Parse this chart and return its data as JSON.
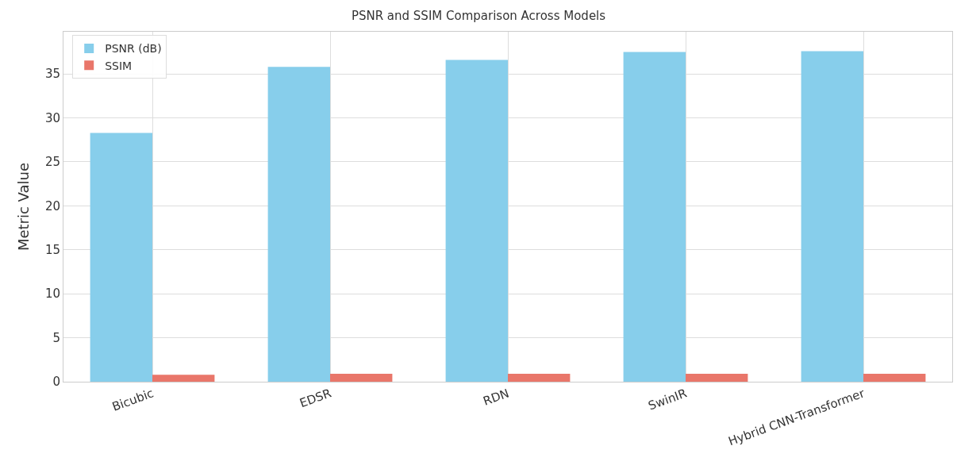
{
  "chart_data": {
    "type": "bar",
    "title": "PSNR and SSIM Comparison Across Models",
    "ylabel": "Metric Value",
    "categories": [
      "Bicubic",
      "EDSR",
      "RDN",
      "SwinIR",
      "Hybrid CNN-Transformer"
    ],
    "series": [
      {
        "name": "PSNR (dB)",
        "color": "#87ceeb",
        "values": [
          28.3,
          35.8,
          36.6,
          37.5,
          37.6
        ]
      },
      {
        "name": "SSIM",
        "color": "#e9766a",
        "values": [
          0.8,
          0.9,
          0.9,
          0.9,
          0.9
        ]
      }
    ],
    "ylim": [
      0,
      39.8
    ],
    "yticks": [
      0,
      5,
      10,
      15,
      20,
      25,
      30,
      35
    ],
    "grid": true,
    "legend": "top left"
  }
}
